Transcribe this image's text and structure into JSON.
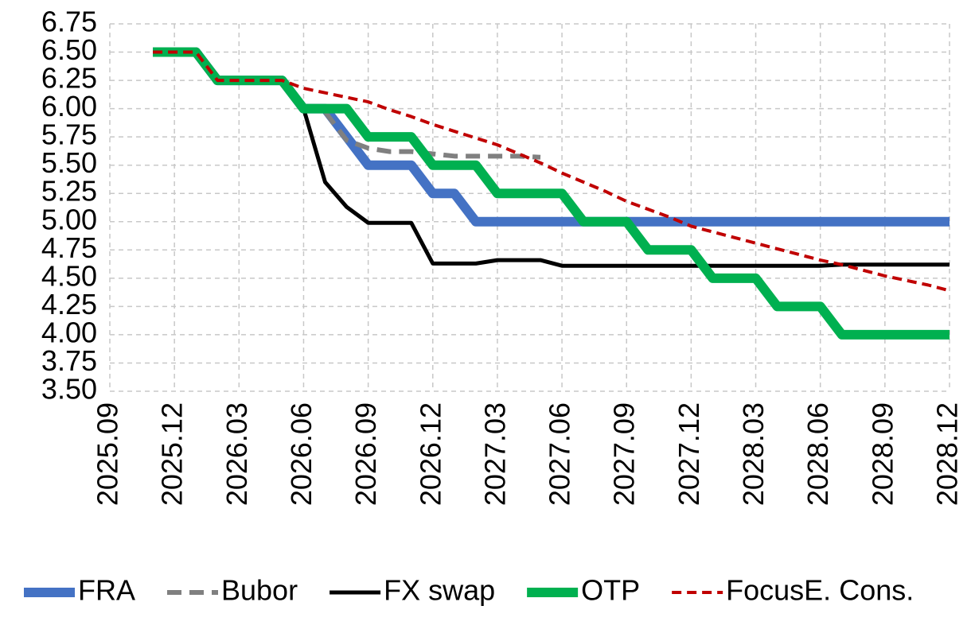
{
  "chart_data": {
    "type": "line",
    "categories": [
      "2025.09",
      null,
      null,
      "2025.12",
      null,
      null,
      "2026.03",
      null,
      null,
      "2026.06",
      null,
      null,
      "2026.09",
      null,
      null,
      "2026.12",
      null,
      null,
      "2027.03",
      null,
      null,
      "2027.06",
      null,
      null,
      "2027.09",
      null,
      null,
      "2027.12",
      null,
      null,
      "2028.03",
      null,
      null,
      "2028.06",
      null,
      null,
      "2028.09",
      null,
      null,
      "2028.12"
    ],
    "ylim": [
      3.5,
      6.75
    ],
    "yticks": [
      {
        "value": 3.5,
        "label": "3.50"
      },
      3.75,
      {
        "value": 4,
        "label": "4.00"
      },
      4.25,
      {
        "value": 4.5,
        "label": "4.50"
      },
      4.75,
      {
        "value": 5,
        "label": "5.00"
      },
      5.25,
      {
        "value": 5.5,
        "label": "5.50"
      },
      5.75,
      {
        "value": 6,
        "label": "6.00"
      },
      6.25,
      {
        "value": 6.5,
        "label": "6.50"
      },
      6.75
    ],
    "grid": true,
    "legend": "bottom",
    "series": [
      {
        "name": "FRA",
        "color": "#4472c4",
        "style": "solid",
        "values": [
          null,
          null,
          6.5,
          6.5,
          6.5,
          6.25,
          6.25,
          6.25,
          6.25,
          6.0,
          6.0,
          5.75,
          5.5,
          5.5,
          5.5,
          5.25,
          5.25,
          5.0,
          5.0,
          5.0,
          5.0,
          5.0,
          5.0,
          5.0,
          5.0,
          5.0,
          5.0,
          5.0,
          5.0,
          5.0,
          5.0,
          5.0,
          5.0,
          5.0,
          5.0,
          5.0,
          5.0,
          5.0,
          5.0,
          5.0
        ]
      },
      {
        "name": "Bubor",
        "color": "#808080",
        "style": "dashed",
        "values": [
          null,
          null,
          null,
          null,
          null,
          null,
          null,
          null,
          null,
          6.0,
          5.97,
          5.72,
          5.65,
          5.62,
          5.62,
          5.6,
          5.58,
          5.58,
          5.58,
          5.58,
          5.57,
          null,
          null,
          null,
          null,
          null,
          null,
          null,
          null,
          null,
          null,
          null,
          null,
          null,
          null,
          null,
          null,
          null,
          null,
          null
        ]
      },
      {
        "name": "FX swap",
        "color": "#000000",
        "style": "solid",
        "values": [
          null,
          null,
          null,
          null,
          null,
          null,
          null,
          null,
          null,
          6.0,
          5.35,
          5.13,
          4.99,
          4.99,
          4.99,
          4.63,
          4.63,
          4.63,
          4.66,
          4.66,
          4.66,
          4.61,
          4.61,
          4.61,
          4.61,
          4.61,
          4.61,
          4.61,
          4.61,
          4.61,
          4.61,
          4.61,
          4.61,
          4.61,
          4.62,
          4.62,
          4.62,
          4.62,
          4.62,
          4.62
        ]
      },
      {
        "name": "OTP",
        "color": "#00b050",
        "style": "solid",
        "values": [
          null,
          null,
          6.5,
          6.5,
          6.5,
          6.25,
          6.25,
          6.25,
          6.25,
          6.0,
          6.0,
          6.0,
          5.75,
          5.75,
          5.75,
          5.5,
          5.5,
          5.5,
          5.25,
          5.25,
          5.25,
          5.25,
          5.0,
          5.0,
          5.0,
          4.75,
          4.75,
          4.75,
          4.5,
          4.5,
          4.5,
          4.25,
          4.25,
          4.25,
          4.0,
          4.0,
          4.0,
          4.0,
          4.0,
          4.0
        ]
      },
      {
        "name": "FocusE. Cons.",
        "color": "#c00000",
        "style": "dashed",
        "values": [
          null,
          null,
          6.5,
          6.5,
          6.5,
          6.25,
          6.25,
          6.25,
          6.25,
          6.18,
          6.14,
          6.1,
          6.06,
          5.99,
          5.93,
          5.86,
          5.8,
          5.74,
          5.68,
          5.6,
          5.52,
          5.43,
          5.35,
          5.27,
          5.18,
          5.11,
          5.04,
          4.96,
          4.91,
          4.86,
          4.81,
          4.76,
          4.71,
          4.66,
          4.62,
          4.57,
          4.52,
          4.48,
          4.44,
          4.39
        ]
      }
    ]
  }
}
